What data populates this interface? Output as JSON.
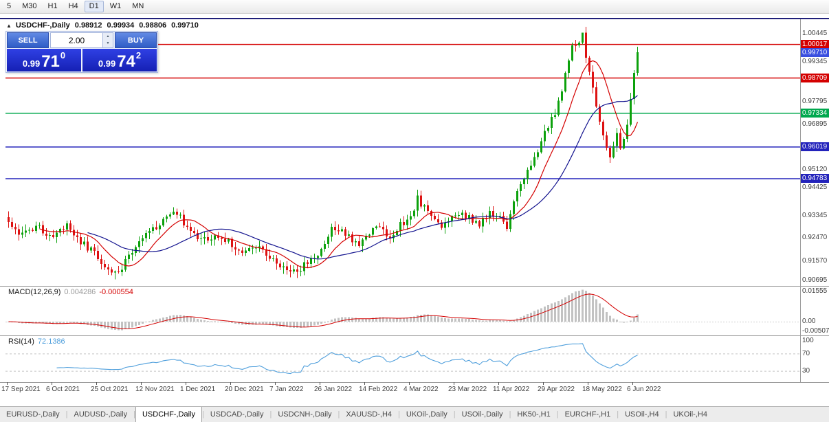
{
  "toolbar": {
    "buttons": [
      "5",
      "M30",
      "H1",
      "H4",
      "D1",
      "W1",
      "MN"
    ],
    "active": "D1"
  },
  "header": {
    "collapse_icon": "▲",
    "symbol": "USDCHF-,Daily",
    "open": "0.98912",
    "high": "0.99934",
    "low": "0.98806",
    "close": "0.99710"
  },
  "one_click": {
    "sell_label": "SELL",
    "buy_label": "BUY",
    "volume": "2.00",
    "spin_up_icon": "▲",
    "spin_down_icon": "▼",
    "sell_price": {
      "prefix": "0.99",
      "pips": "71",
      "sup": "0"
    },
    "buy_price": {
      "prefix": "0.99",
      "pips": "74",
      "sup": "2"
    }
  },
  "price_axis": {
    "gray_labels": [
      1.00445,
      0.99345,
      0.97795,
      0.96895,
      0.9512,
      0.94425,
      0.93345,
      0.9247,
      0.9157,
      0.90695
    ]
  },
  "levels": [
    {
      "price": 1.00017,
      "label": "1.00017",
      "color": "#d40000",
      "line": true
    },
    {
      "price": 0.9971,
      "label": "0.99710",
      "color": "#3a4fe0",
      "line": false
    },
    {
      "price": 0.98709,
      "label": "0.98709",
      "color": "#d40000",
      "line": true
    },
    {
      "price": 0.97334,
      "label": "0.97334",
      "color": "#00a84e",
      "line": true
    },
    {
      "price": 0.96019,
      "label": "0.96019",
      "color": "#2323bb",
      "line": true
    },
    {
      "price": 0.94783,
      "label": "0.94783",
      "color": "#2323bb",
      "line": true
    }
  ],
  "macd": {
    "label": "MACD(12,26,9)",
    "value": "0.004286",
    "signal": "-0.000554",
    "axis_labels": [
      "0.01555",
      "0.00",
      "-0.00507"
    ],
    "axis_values": [
      0.01555,
      0,
      -0.00507
    ]
  },
  "rsi": {
    "label": "RSI(14)",
    "value": "72.1386",
    "axis_labels": [
      "100",
      "70",
      "30"
    ],
    "axis_values": [
      100,
      70,
      30
    ],
    "guide_levels": [
      70,
      30
    ]
  },
  "time_axis": {
    "labels": [
      "17 Sep 2021",
      "6 Oct 2021",
      "25 Oct 2021",
      "12 Nov 2021",
      "1 Dec 2021",
      "20 Dec 2021",
      "7 Jan 2022",
      "26 Jan 2022",
      "14 Feb 2022",
      "4 Mar 2022",
      "23 Mar 2022",
      "11 Apr 2022",
      "29 Apr 2022",
      "18 May 2022",
      "6 Jun 2022"
    ]
  },
  "tabs": {
    "items": [
      {
        "label": "EURUSD-,Daily"
      },
      {
        "label": "AUDUSD-,Daily"
      },
      {
        "label": "USDCHF-,Daily",
        "active": true
      },
      {
        "label": "USDCAD-,Daily"
      },
      {
        "label": "USDCNH-,Daily"
      },
      {
        "label": "XAUUSD-,H4"
      },
      {
        "label": "UKOil-,Daily"
      },
      {
        "label": "USOil-,Daily"
      },
      {
        "label": "HK50-,H1"
      },
      {
        "label": "EURCHF-,H1"
      },
      {
        "label": "USOil-,H4"
      },
      {
        "label": "UKOil-,H4"
      }
    ]
  },
  "colors": {
    "up_candle": "#0ca10c",
    "down_candle": "#dd1111",
    "ma_fast": "#d40000",
    "ma_slow": "#12128e",
    "macd_hist": "#c2c2c2",
    "macd_signal": "#d40000",
    "rsi_line": "#4f9fdc",
    "level_red": "#d40000",
    "level_green": "#00a84e",
    "level_navy": "#2323bb",
    "current_price_badge": "#3a4fe0",
    "frame_navy": "#20207a"
  },
  "chart_data": {
    "type": "candlestick",
    "symbol": "USDCHF-",
    "timeframe": "Daily",
    "title": "USDCHF-,Daily",
    "bars": 184,
    "price_range": [
      0.906,
      1.01
    ],
    "x_labels": [
      "17 Sep 2021",
      "6 Oct 2021",
      "25 Oct 2021",
      "12 Nov 2021",
      "1 Dec 2021",
      "20 Dec 2021",
      "7 Jan 2022",
      "26 Jan 2022",
      "14 Feb 2022",
      "4 Mar 2022",
      "23 Mar 2022",
      "11 Apr 2022",
      "29 Apr 2022",
      "18 May 2022",
      "6 Jun 2022"
    ],
    "bars_per_x_label": 13,
    "close_path": [
      [
        0,
        0.931
      ],
      [
        4,
        0.9255
      ],
      [
        8,
        0.929
      ],
      [
        13,
        0.9255
      ],
      [
        17,
        0.929
      ],
      [
        21,
        0.923
      ],
      [
        26,
        0.9175
      ],
      [
        30,
        0.91
      ],
      [
        33,
        0.913
      ],
      [
        36,
        0.92
      ],
      [
        39,
        0.926
      ],
      [
        44,
        0.93
      ],
      [
        48,
        0.9355
      ],
      [
        52,
        0.929
      ],
      [
        56,
        0.9235
      ],
      [
        60,
        0.926
      ],
      [
        65,
        0.9225
      ],
      [
        69,
        0.9185
      ],
      [
        73,
        0.922
      ],
      [
        78,
        0.915
      ],
      [
        82,
        0.9105
      ],
      [
        86,
        0.914
      ],
      [
        91,
        0.9195
      ],
      [
        94,
        0.9295
      ],
      [
        98,
        0.926
      ],
      [
        102,
        0.923
      ],
      [
        104,
        0.926
      ],
      [
        108,
        0.9295
      ],
      [
        111,
        0.925
      ],
      [
        114,
        0.93
      ],
      [
        117,
        0.933
      ],
      [
        119,
        0.94
      ],
      [
        122,
        0.9345
      ],
      [
        126,
        0.93
      ],
      [
        130,
        0.9335
      ],
      [
        134,
        0.933
      ],
      [
        137,
        0.93
      ],
      [
        140,
        0.934
      ],
      [
        143,
        0.933
      ],
      [
        145,
        0.929
      ],
      [
        148,
        0.942
      ],
      [
        151,
        0.951
      ],
      [
        154,
        0.959
      ],
      [
        156,
        0.965
      ],
      [
        158,
        0.971
      ],
      [
        160,
        0.977
      ],
      [
        162,
        0.989
      ],
      [
        164,
        0.999
      ],
      [
        166,
        1.002
      ],
      [
        167,
        1.0035
      ],
      [
        168,
        0.996
      ],
      [
        169,
        0.99
      ],
      [
        171,
        0.975
      ],
      [
        173,
        0.964
      ],
      [
        175,
        0.9575
      ],
      [
        176,
        0.9615
      ],
      [
        177,
        0.9645
      ],
      [
        178,
        0.9585
      ],
      [
        179,
        0.962
      ],
      [
        180,
        0.97
      ],
      [
        181,
        0.979
      ],
      [
        182,
        0.9891
      ],
      [
        183,
        0.9971
      ]
    ],
    "last_bar": {
      "open": 0.98912,
      "high": 0.99934,
      "low": 0.98806,
      "close": 0.9971
    },
    "bar_overrides": {
      "31": {
        "low": 0.9085
      },
      "167": {
        "high": 1.00445
      }
    },
    "ma_fast_period": 10,
    "ma_slow_period": 24,
    "macd_params": [
      12,
      26,
      9
    ],
    "rsi_period": 14,
    "horizontal_lines": [
      1.00017,
      0.98709,
      0.97334,
      0.96019,
      0.94783
    ],
    "indicators": [
      {
        "name": "MACD",
        "params": [
          12,
          26,
          9
        ],
        "current_values": [
          0.004286,
          -0.000554
        ],
        "y_range": [
          -0.0071,
          0.0184
        ]
      },
      {
        "name": "RSI",
        "params": [
          14
        ],
        "current_value": 72.1386,
        "guide_levels": [
          70,
          30
        ]
      }
    ],
    "legend_position": "none",
    "grid": false
  }
}
